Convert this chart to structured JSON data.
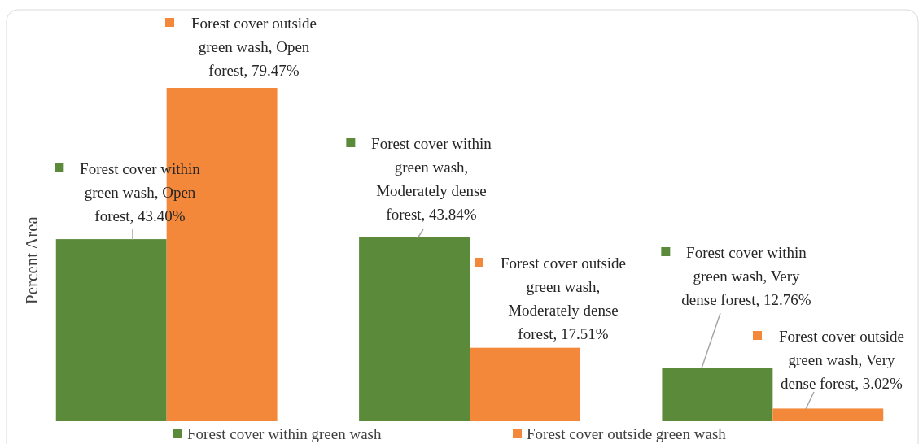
{
  "chart_data": {
    "type": "bar",
    "ylabel": "Percent Area",
    "categories": [
      null,
      null,
      null
    ],
    "legend": "bottom",
    "series": [
      {
        "name": "Forest cover within green wash",
        "color": "#5b8a3a",
        "values": [
          43.4,
          43.84,
          12.76
        ],
        "value_labels": [
          "Forest cover within green wash, Open forest, 43.40%",
          "Forest cover within green wash, Moderately dense forest, 43.84%",
          "Forest cover within green wash, Very dense forest, 12.76%"
        ]
      },
      {
        "name": "Forest cover outside green wash",
        "color": "#f4883a",
        "values": [
          79.47,
          17.51,
          3.02
        ],
        "value_labels": [
          "Forest cover outside green wash, Open forest, 79.47%",
          "Forest cover outside green wash, Moderately dense forest, 17.51%",
          "Forest cover outside green wash, Very dense forest, 3.02%"
        ]
      }
    ]
  }
}
